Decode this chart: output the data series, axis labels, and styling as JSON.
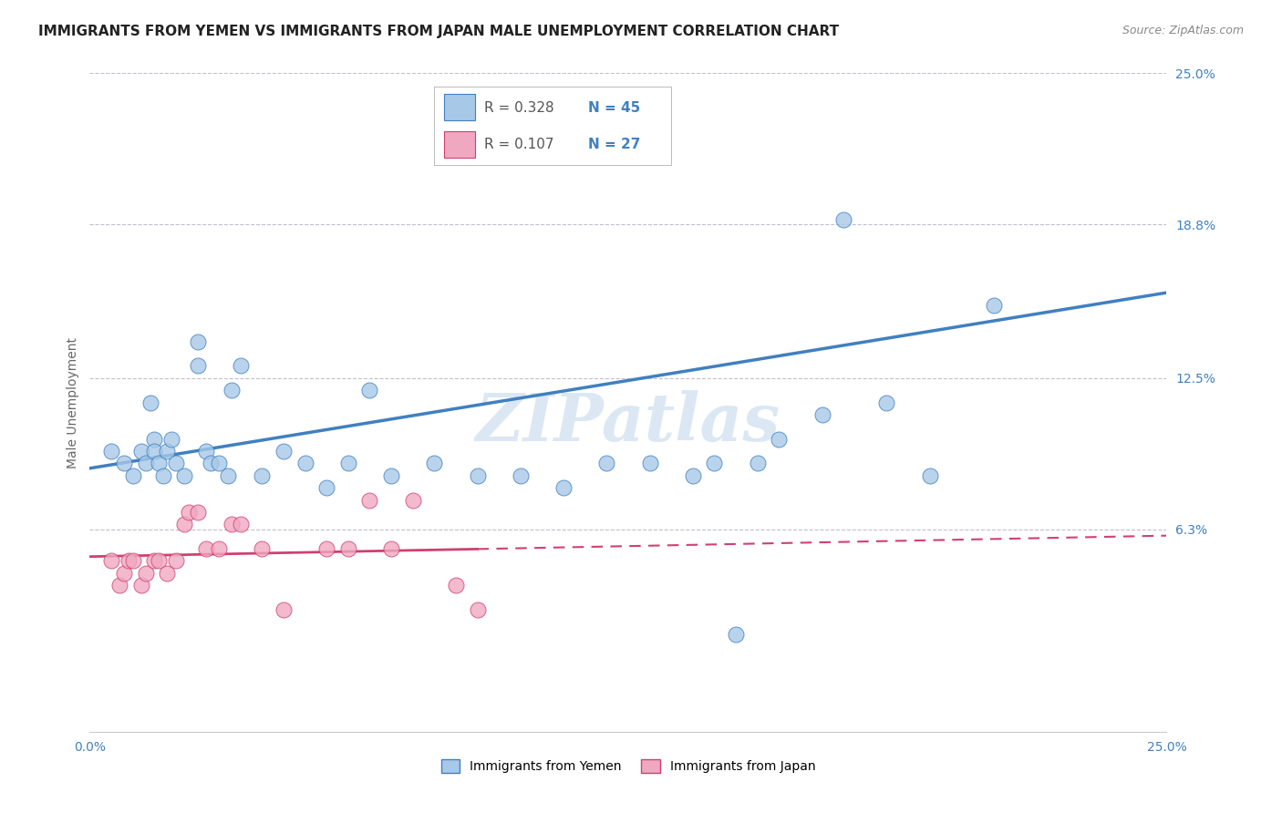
{
  "title": "IMMIGRANTS FROM YEMEN VS IMMIGRANTS FROM JAPAN MALE UNEMPLOYMENT CORRELATION CHART",
  "source": "Source: ZipAtlas.com",
  "ylabel": "Male Unemployment",
  "watermark": "ZIPatlas",
  "xmin": 0.0,
  "xmax": 0.25,
  "ymin": -0.02,
  "ymax": 0.25,
  "yticks": [
    0.063,
    0.125,
    0.188,
    0.25
  ],
  "ytick_labels": [
    "6.3%",
    "12.5%",
    "18.8%",
    "25.0%"
  ],
  "xtick_labels": [
    "0.0%",
    "25.0%"
  ],
  "legend_r1": "R = 0.328",
  "legend_n1": "N = 45",
  "legend_r2": "R = 0.107",
  "legend_n2": "N = 27",
  "color_yemen": "#a8c8e8",
  "color_japan": "#f0a8c0",
  "trendline_yemen_color": "#4080c0",
  "trendline_japan_color": "#d04070",
  "background_color": "#ffffff",
  "grid_color": "#c0c0cc",
  "yemen_scatter_x": [
    0.005,
    0.008,
    0.01,
    0.012,
    0.013,
    0.014,
    0.015,
    0.015,
    0.016,
    0.017,
    0.018,
    0.019,
    0.02,
    0.022,
    0.025,
    0.025,
    0.027,
    0.028,
    0.03,
    0.032,
    0.033,
    0.035,
    0.04,
    0.045,
    0.05,
    0.055,
    0.06,
    0.065,
    0.07,
    0.08,
    0.09,
    0.1,
    0.11,
    0.12,
    0.13,
    0.14,
    0.145,
    0.15,
    0.155,
    0.16,
    0.17,
    0.175,
    0.185,
    0.195,
    0.21
  ],
  "yemen_scatter_y": [
    0.095,
    0.09,
    0.085,
    0.095,
    0.09,
    0.115,
    0.1,
    0.095,
    0.09,
    0.085,
    0.095,
    0.1,
    0.09,
    0.085,
    0.13,
    0.14,
    0.095,
    0.09,
    0.09,
    0.085,
    0.12,
    0.13,
    0.085,
    0.095,
    0.09,
    0.08,
    0.09,
    0.12,
    0.085,
    0.09,
    0.085,
    0.085,
    0.08,
    0.09,
    0.09,
    0.085,
    0.09,
    0.02,
    0.09,
    0.1,
    0.11,
    0.19,
    0.115,
    0.085,
    0.155
  ],
  "japan_scatter_x": [
    0.005,
    0.007,
    0.008,
    0.009,
    0.01,
    0.012,
    0.013,
    0.015,
    0.016,
    0.018,
    0.02,
    0.022,
    0.023,
    0.025,
    0.027,
    0.03,
    0.033,
    0.035,
    0.04,
    0.045,
    0.055,
    0.06,
    0.065,
    0.07,
    0.075,
    0.085,
    0.09
  ],
  "japan_scatter_y": [
    0.05,
    0.04,
    0.045,
    0.05,
    0.05,
    0.04,
    0.045,
    0.05,
    0.05,
    0.045,
    0.05,
    0.065,
    0.07,
    0.07,
    0.055,
    0.055,
    0.065,
    0.065,
    0.055,
    0.03,
    0.055,
    0.055,
    0.075,
    0.055,
    0.075,
    0.04,
    0.03
  ],
  "trendline_yemen_x0": 0.0,
  "trendline_yemen_y0": 0.088,
  "trendline_yemen_x1": 0.25,
  "trendline_yemen_y1": 0.16,
  "trendline_japan_x0": 0.0,
  "trendline_japan_y0": 0.048,
  "trendline_japan_x1": 0.25,
  "trendline_japan_y1": 0.063,
  "title_fontsize": 11,
  "axis_label_fontsize": 10,
  "tick_fontsize": 10,
  "legend_fontsize": 11
}
